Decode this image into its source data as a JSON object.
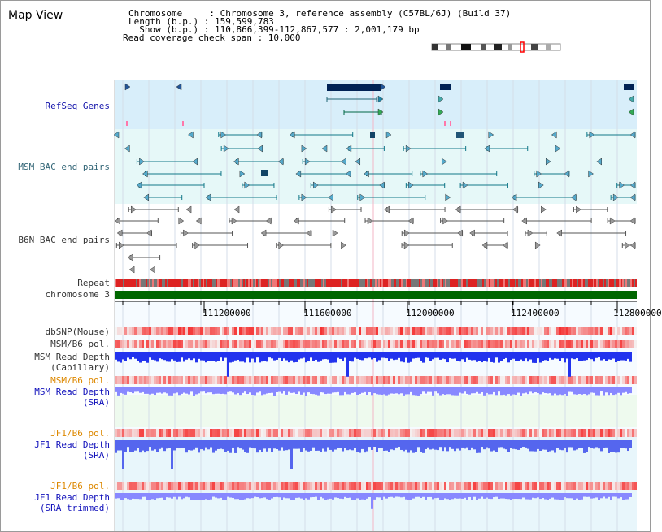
{
  "map_title": "Map View",
  "info": {
    "chromosome": "Chromosome     : Chromosome 3, reference assembly (C57BL/6J) (Build 37)",
    "length": "Length (b.p.) : 159,599,783",
    "show": "  Show (b.p.) : 110,866,399-112,867,577 : 2,001,179 bp",
    "coverage": "Read coverage check span : 10,000"
  },
  "tracks": {
    "refseq": "RefSeq Genes",
    "msm_bac": "MSM BAC end pairs",
    "b6n_bac": "B6N BAC end pairs",
    "repeat": "Repeat",
    "chromosome": "chromosome 3",
    "dbsnp": "dbSNP(Mouse)",
    "msm_b6_pol": "MSM/B6 pol.",
    "msm_read_depth_1": "MSM Read Depth",
    "msm_read_depth_2": "(Capillary)",
    "msm_b6_pol_sra": "MSM/B6 pol.",
    "msm_sra_1": "MSM Read Depth",
    "msm_sra_2": "(SRA)",
    "jf1_b6_pol_1": "JF1/B6 pol.",
    "jf1_depth_1": "JF1 Read Depth",
    "jf1_depth_1b": "(SRA)",
    "jf1_b6_pol_2": "JF1/B6 pol.",
    "jf1_depth_2": "JF1 Read Depth",
    "jf1_depth_2b": "(SRA trimmed)"
  },
  "axis": {
    "ticks": [
      "111200000",
      "111600000",
      "112000000",
      "112400000",
      "112800000"
    ]
  },
  "colors": {
    "refseq_bg": "#d8eefa",
    "msm_bg": "#e6f8f8",
    "refseq_gene": "#002255",
    "refseq_feature": "#006644",
    "msm_feature": "#117788",
    "b6n_feature": "#555555",
    "repeat_red": "#dd2222",
    "repeat_gray": "#777777",
    "chromosome_green": "#006600",
    "depth_blue": "#2233ee",
    "depth_light": "#8888ff"
  }
}
